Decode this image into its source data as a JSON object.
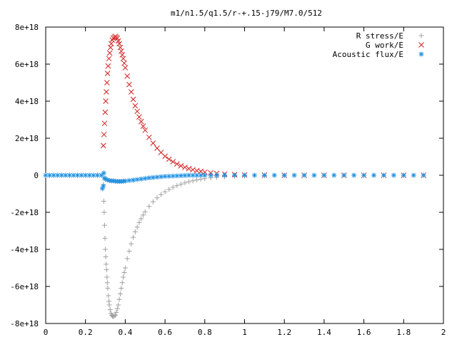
{
  "chart_data": {
    "type": "scatter",
    "title": "m1/n1.5/q1.5/r-+.15-j79/M7.0/512",
    "xlabel": "",
    "ylabel": "",
    "xlim": [
      0,
      2
    ],
    "ylim": [
      -8e+18,
      8e+18
    ],
    "x_ticks": [
      0,
      0.2,
      0.4,
      0.6,
      0.8,
      1,
      1.2,
      1.4,
      1.6,
      1.8,
      2
    ],
    "x_tick_labels": [
      "0",
      "0.2",
      "0.4",
      "0.6",
      "0.8",
      "1",
      "1.2",
      "1.4",
      "1.6",
      "1.8",
      "2"
    ],
    "y_ticks": [
      -8e+18,
      -6e+18,
      -4e+18,
      -2e+18,
      0,
      2e+18,
      4e+18,
      6e+18,
      8e+18
    ],
    "y_tick_labels": [
      "-8e+18",
      "-6e+18",
      "-4e+18",
      "-2e+18",
      "0",
      "2e+18",
      "4e+18",
      "6e+18",
      "8e+18"
    ],
    "grid": false,
    "legend_position": "top-right",
    "series": [
      {
        "name": "R stress/E",
        "marker": "plus",
        "color": "#a0a0a0",
        "x": [
          0.29,
          0.292,
          0.294,
          0.296,
          0.298,
          0.3,
          0.302,
          0.304,
          0.306,
          0.308,
          0.31,
          0.312,
          0.315,
          0.318,
          0.32,
          0.324,
          0.328,
          0.332,
          0.336,
          0.34,
          0.345,
          0.35,
          0.355,
          0.36,
          0.365,
          0.37,
          0.375,
          0.38,
          0.385,
          0.39,
          0.395,
          0.4,
          0.41,
          0.42,
          0.43,
          0.44,
          0.45,
          0.46,
          0.47,
          0.48,
          0.49,
          0.5,
          0.52,
          0.54,
          0.56,
          0.58,
          0.6,
          0.62,
          0.64,
          0.66,
          0.68,
          0.7,
          0.72,
          0.74,
          0.76,
          0.78,
          0.8,
          0.83,
          0.86,
          0.9,
          0.95,
          1.0,
          1.1,
          1.2,
          1.3,
          1.4,
          1.5,
          1.6,
          1.7,
          1.8,
          1.9
        ],
        "y": [
          -5e+17,
          -1.4e+18,
          -2e+18,
          -2.7e+18,
          -3.4e+18,
          -4e+18,
          -4.4e+18,
          -4.8e+18,
          -5.1e+18,
          -5.5e+18,
          -5.8e+18,
          -6.1e+18,
          -6.5e+18,
          -6.8e+18,
          -7e+18,
          -7.25e+18,
          -7.45e+18,
          -7.55e+18,
          -7.6e+18,
          -7.62e+18,
          -7.6e+18,
          -7.55e+18,
          -7.4e+18,
          -7.2e+18,
          -7e+18,
          -6.7e+18,
          -6.4e+18,
          -6.1e+18,
          -5.8e+18,
          -5.5e+18,
          -5.25e+18,
          -5e+18,
          -4.5e+18,
          -4.1e+18,
          -3.7e+18,
          -3.35e+18,
          -3.05e+18,
          -2.8e+18,
          -2.55e+18,
          -2.35e+18,
          -2.15e+18,
          -1.97e+18,
          -1.68e+18,
          -1.43e+18,
          -1.22e+18,
          -1.04e+18,
          -8.9e+17,
          -7.6e+17,
          -6.5e+17,
          -5.6e+17,
          -4.8e+17,
          -4.1e+17,
          -3.5e+17,
          -3e+17,
          -2.5e+17,
          -2.1e+17,
          -1.8e+17,
          -1.4e+17,
          -1.1e+17,
          -8e+16,
          -5e+16,
          -3e+16,
          -2e+16,
          -1e+16,
          0,
          0,
          0,
          0,
          0,
          0,
          0
        ]
      },
      {
        "name": "G work/E",
        "marker": "cross",
        "color": "#d02020",
        "x": [
          0.29,
          0.293,
          0.296,
          0.299,
          0.302,
          0.305,
          0.308,
          0.311,
          0.314,
          0.318,
          0.322,
          0.326,
          0.33,
          0.335,
          0.34,
          0.345,
          0.35,
          0.355,
          0.36,
          0.365,
          0.37,
          0.375,
          0.38,
          0.385,
          0.39,
          0.395,
          0.4,
          0.41,
          0.42,
          0.43,
          0.44,
          0.45,
          0.46,
          0.47,
          0.48,
          0.49,
          0.5,
          0.52,
          0.54,
          0.56,
          0.58,
          0.6,
          0.62,
          0.64,
          0.66,
          0.68,
          0.7,
          0.72,
          0.74,
          0.76,
          0.78,
          0.8,
          0.83,
          0.86,
          0.9,
          0.95,
          1.0,
          1.1,
          1.2,
          1.3,
          1.4,
          1.5,
          1.6,
          1.7,
          1.8,
          1.9
        ],
        "y": [
          1.6e+18,
          2.2e+18,
          2.8e+18,
          3.4e+18,
          4e+18,
          4.5e+18,
          5e+18,
          5.5e+18,
          5.9e+18,
          6.3e+18,
          6.6e+18,
          6.9e+18,
          7.1e+18,
          7.3e+18,
          7.4e+18,
          7.45e+18,
          7.5e+18,
          7.45e+18,
          7.4e+18,
          7.25e+18,
          7.1e+18,
          6.9e+18,
          6.7e+18,
          6.5e+18,
          6.3e+18,
          6.05e+18,
          5.8e+18,
          5.35e+18,
          4.9e+18,
          4.5e+18,
          4.1e+18,
          3.75e+18,
          3.45e+18,
          3.15e+18,
          2.9e+18,
          2.65e+18,
          2.43e+18,
          2.05e+18,
          1.73e+18,
          1.46e+18,
          1.23e+18,
          1.03e+18,
          8.7e+17,
          7.3e+17,
          6.1e+17,
          5.1e+17,
          4.3e+17,
          3.6e+17,
          3e+17,
          2.5e+17,
          2.1e+17,
          1.7e+17,
          1.3e+17,
          1e+17,
          7e+16,
          4e+16,
          2e+16,
          1e+16,
          0,
          0,
          0,
          0,
          0,
          0,
          0,
          0
        ]
      },
      {
        "name": "Acoustic flux/E",
        "marker": "star",
        "color": "#2090e0",
        "x": [
          0.0,
          0.02,
          0.04,
          0.06,
          0.08,
          0.1,
          0.12,
          0.14,
          0.16,
          0.18,
          0.2,
          0.22,
          0.24,
          0.26,
          0.28,
          0.285,
          0.29,
          0.292,
          0.295,
          0.3,
          0.31,
          0.32,
          0.33,
          0.34,
          0.35,
          0.36,
          0.37,
          0.38,
          0.39,
          0.4,
          0.42,
          0.44,
          0.46,
          0.48,
          0.5,
          0.52,
          0.54,
          0.56,
          0.58,
          0.6,
          0.62,
          0.64,
          0.66,
          0.68,
          0.7,
          0.72,
          0.74,
          0.76,
          0.78,
          0.8,
          0.83,
          0.86,
          0.9,
          0.95,
          1.0,
          1.05,
          1.1,
          1.15,
          1.2,
          1.25,
          1.3,
          1.35,
          1.4,
          1.45,
          1.5,
          1.55,
          1.6,
          1.65,
          1.7,
          1.75,
          1.8,
          1.85,
          1.9
        ],
        "y": [
          0,
          0,
          0,
          0,
          0,
          0,
          0,
          0,
          0,
          0,
          0,
          0,
          0,
          0,
          0,
          -7.2e+17,
          -5.8e+17,
          1.2e+17,
          -1.5e+17,
          -2e+17,
          -2.5e+17,
          -2.8e+17,
          -3e+17,
          -3e+17,
          -3.2e+17,
          -3.3e+17,
          -3.3e+17,
          -3.3e+17,
          -3.2e+17,
          -3.1e+17,
          -2.8e+17,
          -2.6e+17,
          -2.3e+17,
          -2e+17,
          -1.7e+17,
          -1.4e+17,
          -1.2e+17,
          -1e+17,
          -8e+16,
          -6e+16,
          -5e+16,
          -4e+16,
          -3e+16,
          -2e+16,
          -1e+16,
          0,
          0,
          0,
          0,
          0,
          0,
          0,
          0,
          0,
          0,
          0,
          0,
          0,
          0,
          0,
          0,
          0,
          0,
          0,
          0,
          0,
          0,
          0,
          0,
          0,
          0,
          0,
          0
        ]
      }
    ]
  }
}
